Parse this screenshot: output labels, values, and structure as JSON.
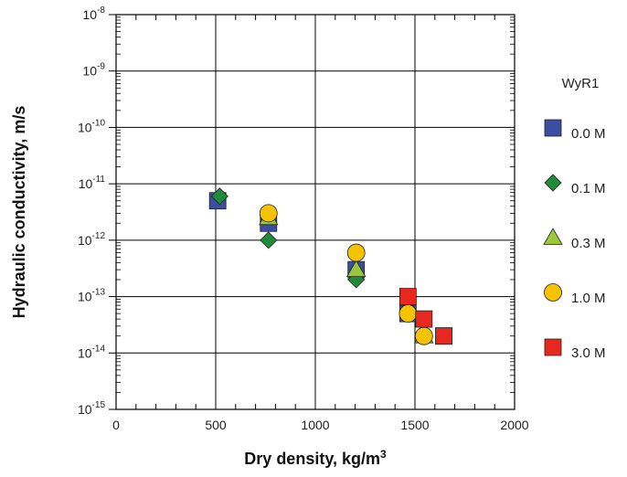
{
  "chart_data": {
    "type": "scatter",
    "title": "",
    "xlabel": "Dry density, kg/m",
    "xlabel_sup": "3",
    "ylabel": "Hydraulic conductivity, m/s",
    "xlim": [
      0,
      2000
    ],
    "ylim": [
      1e-15,
      1e-08
    ],
    "y_scale": "log",
    "x_ticks": [
      0,
      500,
      1000,
      1500,
      2000
    ],
    "x_tick_labels": [
      "0",
      "500",
      "1000",
      "1500",
      "2000"
    ],
    "y_tick_exponents": [
      -8,
      -9,
      -10,
      -11,
      -12,
      -13,
      -14,
      -15
    ],
    "y_tick_base": "10",
    "grid": true,
    "legend_title": "WyR1",
    "legend_position": "right",
    "series": [
      {
        "name": "0.0 M",
        "marker": "square",
        "color": "#3b4ea2",
        "points": [
          {
            "x": 510,
            "y": 5e-12
          },
          {
            "x": 765,
            "y": 2e-12
          },
          {
            "x": 1205,
            "y": 3e-13
          },
          {
            "x": 1465,
            "y": 5e-14
          },
          {
            "x": 1645,
            "y": 2e-14
          }
        ]
      },
      {
        "name": "0.1 M",
        "marker": "diamond",
        "color": "#1e8a3a",
        "points": [
          {
            "x": 520,
            "y": 6e-12
          },
          {
            "x": 765,
            "y": 1e-12
          },
          {
            "x": 1205,
            "y": 2e-13
          },
          {
            "x": 1465,
            "y": 5e-14
          },
          {
            "x": 1545,
            "y": 2e-14
          }
        ]
      },
      {
        "name": "0.3 M",
        "marker": "triangle",
        "color": "#9bc73c",
        "points": [
          {
            "x": 765,
            "y": 2.5e-12
          },
          {
            "x": 1205,
            "y": 3e-13
          },
          {
            "x": 1545,
            "y": 2e-14
          }
        ]
      },
      {
        "name": "1.0 M",
        "marker": "circle",
        "color": "#f7c200",
        "points": [
          {
            "x": 765,
            "y": 3e-12
          },
          {
            "x": 1205,
            "y": 6e-13
          },
          {
            "x": 1465,
            "y": 5e-14
          },
          {
            "x": 1545,
            "y": 2e-14
          }
        ]
      },
      {
        "name": "3.0 M",
        "marker": "square",
        "color": "#e8281e",
        "points": [
          {
            "x": 1465,
            "y": 1e-13
          },
          {
            "x": 1545,
            "y": 4e-14
          },
          {
            "x": 1645,
            "y": 2e-14
          }
        ]
      }
    ]
  }
}
